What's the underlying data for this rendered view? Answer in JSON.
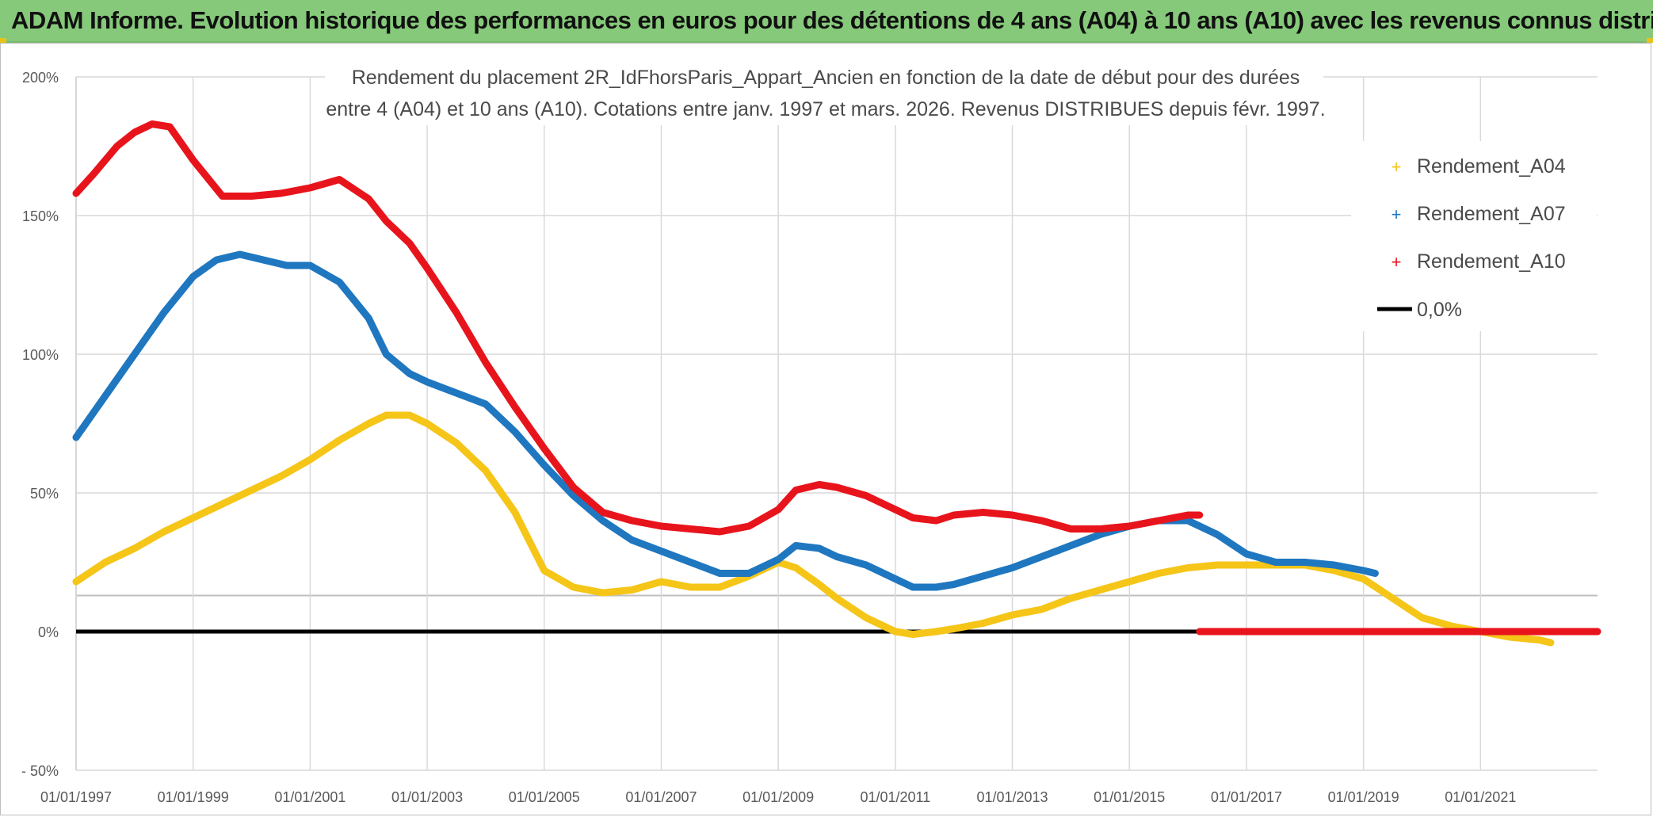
{
  "banner": {
    "title": "ADAM Informe. Evolution historique des performances en euros pour des détentions de 4 ans (A04) à 10 ans (A10) avec les revenus connus distribués"
  },
  "colors": {
    "banner_bg": "#86c97a",
    "a04": "#f5c518",
    "a07": "#1f77c0",
    "a10": "#e8141c",
    "zero": "#000000",
    "grid": "#d9d9d9"
  },
  "chart_data": {
    "type": "line",
    "title_line1": "Rendement du placement 2R_IdFhorsParis_Appart_Ancien en fonction de la date de début pour des durées",
    "title_line2": "entre 4 (A04) et 10 ans (A10). Cotations entre janv. 1997 et mars. 2026. Revenus DISTRIBUES depuis févr. 1997.",
    "x_range": [
      1997.0,
      2023.0
    ],
    "ylim": [
      -50,
      200
    ],
    "y_ticks": [
      -50,
      0,
      50,
      100,
      150,
      200
    ],
    "y_tick_labels": [
      "- 50%",
      "0%",
      "50%",
      "100%",
      "150%",
      "200%"
    ],
    "x_ticks": [
      1997,
      1999,
      2001,
      2003,
      2005,
      2007,
      2009,
      2011,
      2013,
      2015,
      2017,
      2019,
      2021
    ],
    "x_tick_labels": [
      "01/01/1997",
      "01/01/1999",
      "01/01/2001",
      "01/01/2003",
      "01/01/2005",
      "01/01/2007",
      "01/01/2009",
      "01/01/2011",
      "01/01/2013",
      "01/01/2015",
      "01/01/2017",
      "01/01/2019",
      "01/01/2021"
    ],
    "legend_position": "top-right",
    "series": [
      {
        "name": "Rendement_A04",
        "key": "a04",
        "x": [
          1997.0,
          1997.5,
          1998.0,
          1998.5,
          1999.0,
          1999.5,
          2000.0,
          2000.5,
          2001.0,
          2001.5,
          2002.0,
          2002.3,
          2002.7,
          2003.0,
          2003.5,
          2004.0,
          2004.5,
          2005.0,
          2005.5,
          2006.0,
          2006.5,
          2007.0,
          2007.5,
          2008.0,
          2008.5,
          2009.0,
          2009.3,
          2009.7,
          2010.0,
          2010.5,
          2011.0,
          2011.3,
          2011.7,
          2012.0,
          2012.5,
          2013.0,
          2013.5,
          2014.0,
          2014.5,
          2015.0,
          2015.5,
          2016.0,
          2016.5,
          2017.0,
          2017.5,
          2018.0,
          2018.5,
          2019.0,
          2019.5,
          2020.0,
          2020.5,
          2021.0,
          2021.5,
          2022.0,
          2022.2
        ],
        "y": [
          18,
          25,
          30,
          36,
          41,
          46,
          51,
          56,
          62,
          69,
          75,
          78,
          78,
          75,
          68,
          58,
          43,
          22,
          16,
          14,
          15,
          18,
          16,
          16,
          20,
          25,
          23,
          17,
          12,
          5,
          0,
          -1,
          0,
          1,
          3,
          6,
          8,
          12,
          15,
          18,
          21,
          23,
          24,
          24,
          24,
          24,
          22,
          19,
          12,
          5,
          2,
          0,
          -2,
          -3,
          -4
        ]
      },
      {
        "name": "Rendement_A07",
        "key": "a07",
        "x": [
          1997.0,
          1997.5,
          1998.0,
          1998.5,
          1999.0,
          1999.4,
          1999.8,
          2000.2,
          2000.6,
          2001.0,
          2001.5,
          2002.0,
          2002.3,
          2002.7,
          2003.0,
          2003.5,
          2004.0,
          2004.5,
          2005.0,
          2005.5,
          2006.0,
          2006.5,
          2007.0,
          2007.5,
          2008.0,
          2008.5,
          2009.0,
          2009.3,
          2009.7,
          2010.0,
          2010.5,
          2011.0,
          2011.3,
          2011.7,
          2012.0,
          2012.5,
          2013.0,
          2013.5,
          2014.0,
          2014.5,
          2015.0,
          2015.5,
          2016.0,
          2016.5,
          2017.0,
          2017.5,
          2018.0,
          2018.5,
          2019.0,
          2019.2
        ],
        "y": [
          70,
          85,
          100,
          115,
          128,
          134,
          136,
          134,
          132,
          132,
          126,
          113,
          100,
          93,
          90,
          86,
          82,
          72,
          60,
          49,
          40,
          33,
          29,
          25,
          21,
          21,
          26,
          31,
          30,
          27,
          24,
          19,
          16,
          16,
          17,
          20,
          23,
          27,
          31,
          35,
          38,
          40,
          40,
          35,
          28,
          25,
          25,
          24,
          22,
          21
        ]
      },
      {
        "name": "Rendement_A10",
        "key": "a10",
        "x": [
          1997.0,
          1997.3,
          1997.7,
          1998.0,
          1998.3,
          1998.6,
          1999.0,
          1999.5,
          2000.0,
          2000.5,
          2001.0,
          2001.5,
          2002.0,
          2002.3,
          2002.7,
          2003.0,
          2003.5,
          2004.0,
          2004.5,
          2005.0,
          2005.5,
          2006.0,
          2006.5,
          2007.0,
          2007.5,
          2008.0,
          2008.5,
          2009.0,
          2009.3,
          2009.7,
          2010.0,
          2010.5,
          2011.0,
          2011.3,
          2011.7,
          2012.0,
          2012.5,
          2013.0,
          2013.5,
          2014.0,
          2014.5,
          2015.0,
          2015.5,
          2016.0,
          2016.2
        ],
        "y": [
          158,
          165,
          175,
          180,
          183,
          182,
          170,
          157,
          157,
          158,
          160,
          163,
          156,
          148,
          140,
          131,
          115,
          97,
          81,
          66,
          52,
          43,
          40,
          38,
          37,
          36,
          38,
          44,
          51,
          53,
          52,
          49,
          44,
          41,
          40,
          42,
          43,
          42,
          40,
          37,
          37,
          38,
          40,
          42,
          42
        ]
      },
      {
        "name": "Rendement_A10 (0% segment)",
        "key": "a10",
        "legend": false,
        "x": [
          2016.2,
          2023.0
        ],
        "y": [
          0,
          0
        ]
      }
    ],
    "zero_line": {
      "name": "0,0%",
      "x": [
        1997.0,
        2016.2
      ],
      "y": [
        0,
        0
      ]
    },
    "extra_hline": 13
  }
}
